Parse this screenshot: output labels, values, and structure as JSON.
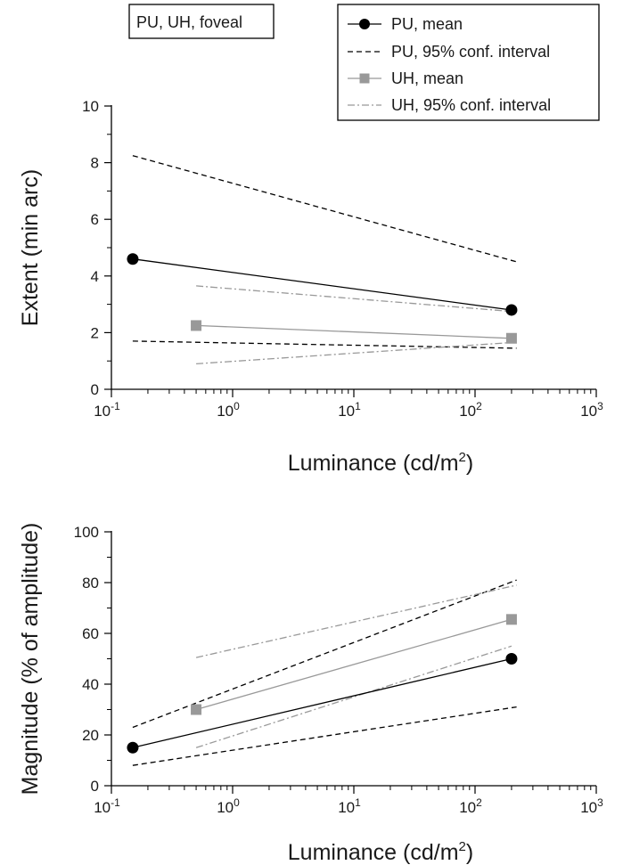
{
  "annotation": "PU, UH, foveal",
  "legend": [
    {
      "label": "PU, mean",
      "color": "#000000",
      "dash": "solid",
      "marker": "circle"
    },
    {
      "label": "PU, 95% conf. interval",
      "color": "#000000",
      "dash": "dashed",
      "marker": "none"
    },
    {
      "label": "UH, mean",
      "color": "#999999",
      "dash": "solid",
      "marker": "square"
    },
    {
      "label": "UH, 95% conf. interval",
      "color": "#999999",
      "dash": "dashdot",
      "marker": "none"
    }
  ],
  "chart_data": [
    {
      "type": "line",
      "xlabel": "Luminance (cd/m",
      "xlabel_sup": "2",
      "xlabel_end": ")",
      "ylabel": "Extent (min arc)",
      "xscale": "log",
      "xlim": [
        0.1,
        1000
      ],
      "ylim": [
        0,
        10
      ],
      "yticks": [
        0,
        2,
        4,
        6,
        8,
        10
      ],
      "xticks": [
        {
          "base": "10",
          "exp": "-1",
          "value": 0.1
        },
        {
          "base": "10",
          "exp": "0",
          "value": 1
        },
        {
          "base": "10",
          "exp": "1",
          "value": 10
        },
        {
          "base": "10",
          "exp": "2",
          "value": 100
        },
        {
          "base": "10",
          "exp": "3",
          "value": 1000
        }
      ],
      "series": [
        {
          "name": "PU, mean",
          "x": [
            0.15,
            200
          ],
          "y": [
            4.6,
            2.8
          ]
        },
        {
          "name": "PU, 95% conf. interval",
          "x": [
            0.15,
            220
          ],
          "y": [
            8.25,
            4.5
          ]
        },
        {
          "name": "PU, 95% conf. interval",
          "x": [
            0.15,
            220
          ],
          "y": [
            1.7,
            1.45
          ]
        },
        {
          "name": "UH, mean",
          "x": [
            0.5,
            200
          ],
          "y": [
            2.25,
            1.8
          ]
        },
        {
          "name": "UH, 95% conf. interval",
          "x": [
            0.5,
            200
          ],
          "y": [
            3.65,
            2.75
          ]
        },
        {
          "name": "UH, 95% conf. interval",
          "x": [
            0.5,
            200
          ],
          "y": [
            0.9,
            1.65
          ]
        }
      ]
    },
    {
      "type": "line",
      "xlabel": "Luminance (cd/m",
      "xlabel_sup": "2",
      "xlabel_end": ")",
      "ylabel": "Magnitude (% of amplitude)",
      "xscale": "log",
      "xlim": [
        0.1,
        1000
      ],
      "ylim": [
        0,
        100
      ],
      "yticks": [
        0,
        20,
        40,
        60,
        80,
        100
      ],
      "xticks": [
        {
          "base": "10",
          "exp": "-1",
          "value": 0.1
        },
        {
          "base": "10",
          "exp": "0",
          "value": 1
        },
        {
          "base": "10",
          "exp": "1",
          "value": 10
        },
        {
          "base": "10",
          "exp": "2",
          "value": 100
        },
        {
          "base": "10",
          "exp": "3",
          "value": 1000
        }
      ],
      "series": [
        {
          "name": "PU, mean",
          "x": [
            0.15,
            200
          ],
          "y": [
            15,
            50
          ]
        },
        {
          "name": "PU, 95% conf. interval",
          "x": [
            0.15,
            220
          ],
          "y": [
            23,
            81
          ]
        },
        {
          "name": "PU, 95% conf. interval",
          "x": [
            0.15,
            220
          ],
          "y": [
            8,
            31
          ]
        },
        {
          "name": "UH, mean",
          "x": [
            0.5,
            200
          ],
          "y": [
            30,
            65.5
          ]
        },
        {
          "name": "UH, 95% conf. interval",
          "x": [
            0.5,
            220
          ],
          "y": [
            50.5,
            79
          ]
        },
        {
          "name": "UH, 95% conf. interval",
          "x": [
            0.5,
            200
          ],
          "y": [
            15,
            55
          ]
        }
      ]
    }
  ]
}
